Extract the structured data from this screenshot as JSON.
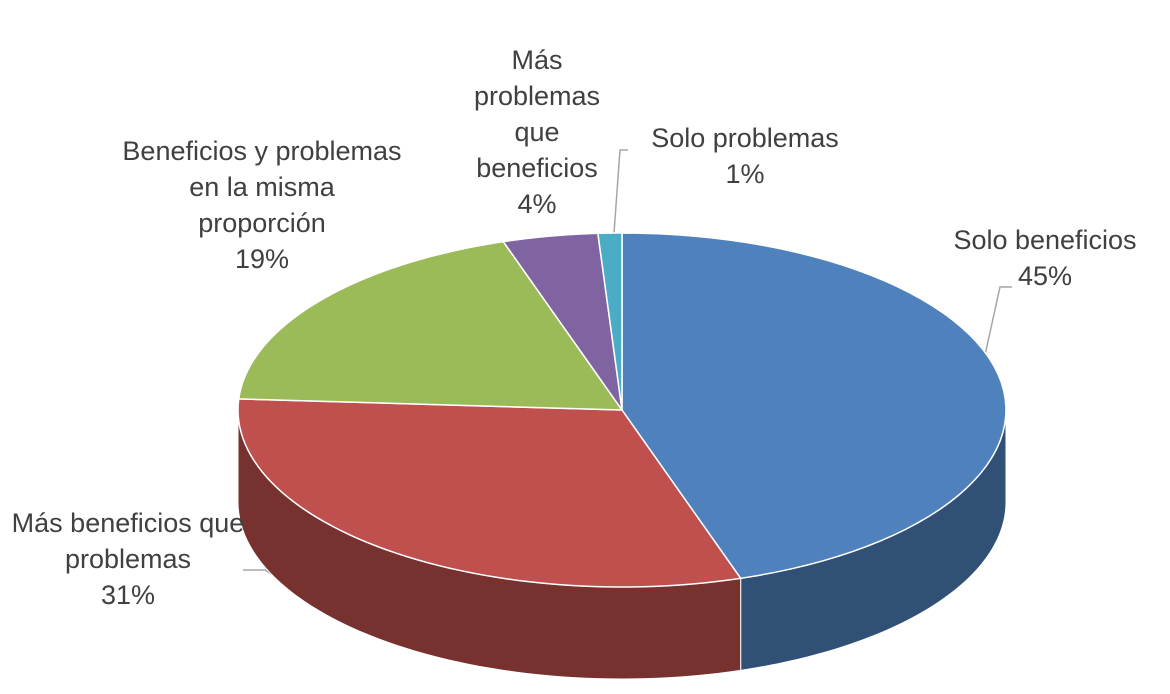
{
  "chart_data": {
    "type": "pie",
    "pie3d": true,
    "categories": [
      "Solo beneficios",
      "Más beneficios que problemas",
      "Beneficios y problemas en la misma proporción",
      "Más problemas que beneficios",
      "Solo problemas"
    ],
    "values": [
      45,
      31,
      19,
      4,
      1
    ],
    "value_labels": [
      "45%",
      "31%",
      "19%",
      "4%",
      "1%"
    ],
    "colors": [
      "#4f81bd",
      "#c0504d",
      "#9bbb59",
      "#8064a2",
      "#4bacc6"
    ]
  }
}
